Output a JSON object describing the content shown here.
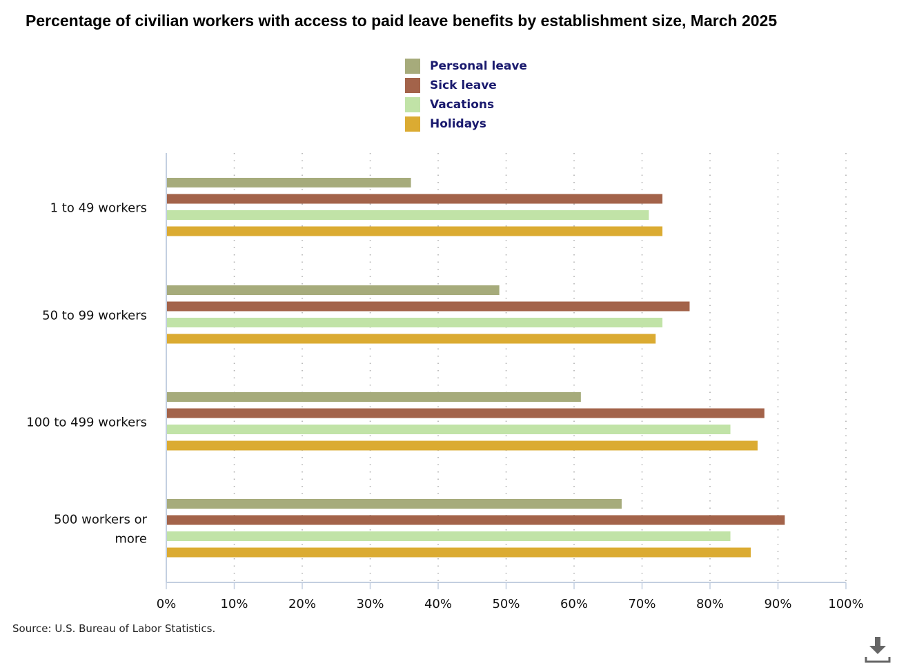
{
  "title": "Percentage of civilian workers with access to paid leave benefits by establishment size, March 2025",
  "legend": [
    {
      "label": "Personal leave",
      "color": "#a6ab7b"
    },
    {
      "label": "Sick leave",
      "color": "#a3634a"
    },
    {
      "label": "Vacations",
      "color": "#c1e3a7"
    },
    {
      "label": "Holidays",
      "color": "#dbab32"
    }
  ],
  "source": "Source: U.S. Bureau of Labor Statistics.",
  "download_icon": "download-icon",
  "chart_data": {
    "type": "bar",
    "orientation": "horizontal",
    "title": "Percentage of civilian workers with access to paid leave benefits by establishment size, March 2025",
    "categories": [
      [
        "1 to 49 workers"
      ],
      [
        "50 to 99 workers"
      ],
      [
        "100 to 499 workers"
      ],
      [
        "500 workers or",
        "more"
      ]
    ],
    "series": [
      {
        "name": "Personal leave",
        "color": "#a6ab7b",
        "values": [
          36,
          49,
          61,
          67
        ]
      },
      {
        "name": "Sick leave",
        "color": "#a3634a",
        "values": [
          73,
          77,
          88,
          91
        ]
      },
      {
        "name": "Vacations",
        "color": "#c1e3a7",
        "values": [
          71,
          73,
          83,
          83
        ]
      },
      {
        "name": "Holidays",
        "color": "#dbab32",
        "values": [
          73,
          72,
          87,
          86
        ]
      }
    ],
    "xlabel": "",
    "ylabel": "",
    "xlim": [
      0,
      100
    ],
    "xticks": [
      0,
      10,
      20,
      30,
      40,
      50,
      60,
      70,
      80,
      90,
      100
    ],
    "xtick_labels": [
      "0%",
      "10%",
      "20%",
      "30%",
      "40%",
      "50%",
      "60%",
      "70%",
      "80%",
      "90%",
      "100%"
    ],
    "grid": "vertical-dotted",
    "legend_position": "top-center"
  }
}
